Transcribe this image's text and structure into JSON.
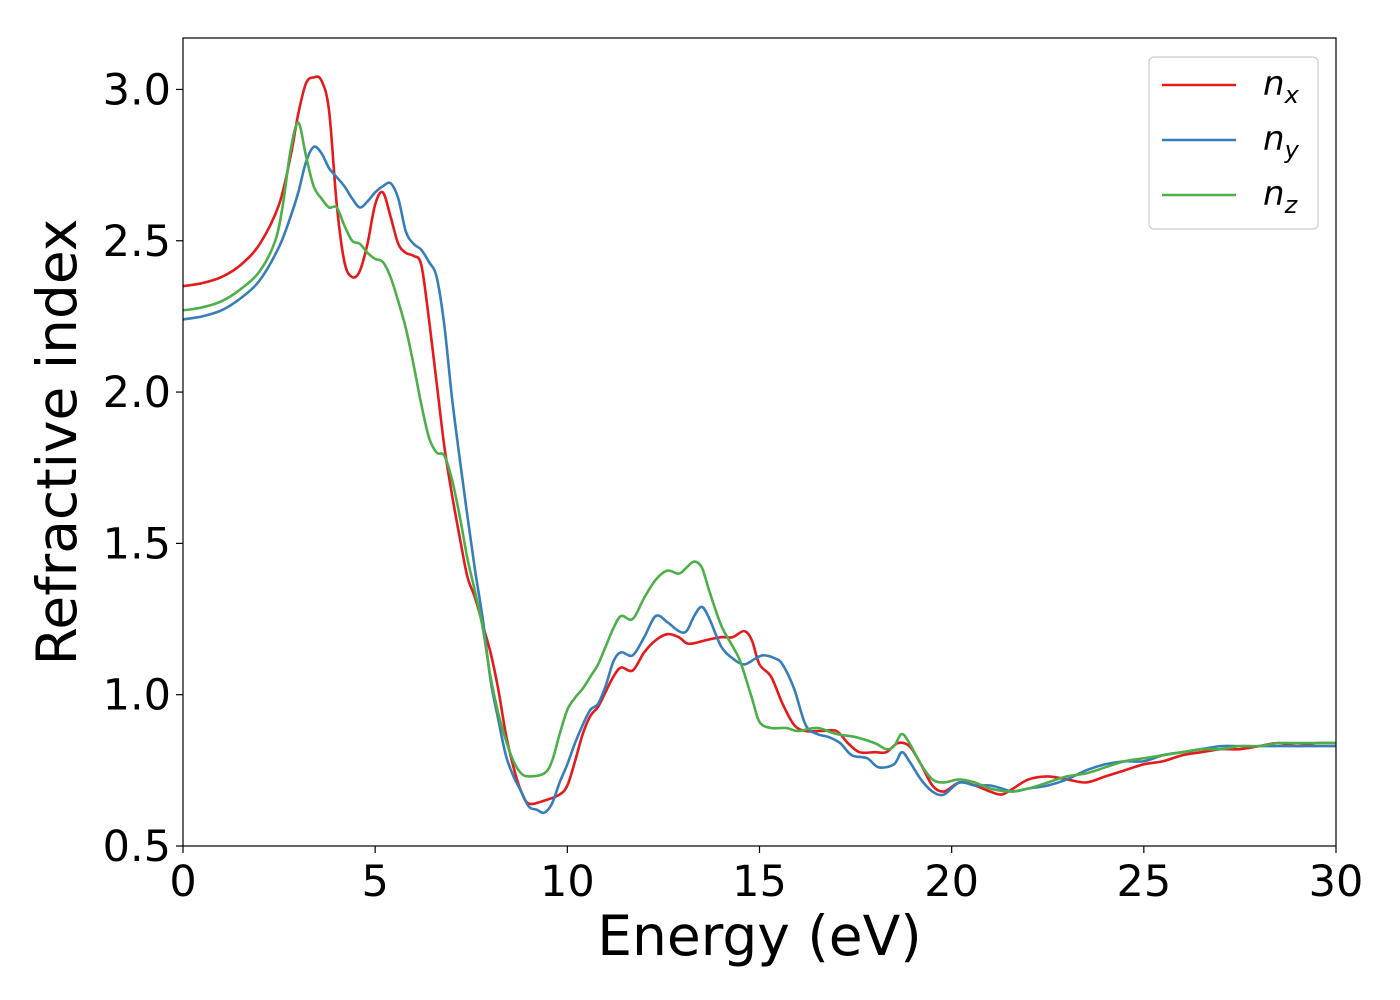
{
  "chart_data": {
    "type": "line",
    "xlabel": "Energy (eV)",
    "ylabel": "Refractive index",
    "xlim": [
      0,
      30
    ],
    "ylim": [
      0.5,
      3.17
    ],
    "xticks": [
      0,
      5,
      10,
      15,
      20,
      25,
      30
    ],
    "xtick_labels": [
      "0",
      "5",
      "10",
      "15",
      "20",
      "25",
      "30"
    ],
    "yticks": [
      0.5,
      1.0,
      1.5,
      2.0,
      2.5,
      3.0
    ],
    "ytick_labels": [
      "0.5",
      "1.0",
      "1.5",
      "2.0",
      "2.5",
      "3.0"
    ],
    "grid": false,
    "legend_position": "top-right",
    "series": [
      {
        "name": "n",
        "sub": "x",
        "color": "#e41a1c",
        "points": [
          [
            0,
            2.35
          ],
          [
            0.5,
            2.36
          ],
          [
            1,
            2.38
          ],
          [
            1.5,
            2.42
          ],
          [
            2,
            2.49
          ],
          [
            2.5,
            2.62
          ],
          [
            2.8,
            2.78
          ],
          [
            3.0,
            2.92
          ],
          [
            3.2,
            3.02
          ],
          [
            3.4,
            3.04
          ],
          [
            3.6,
            3.03
          ],
          [
            3.8,
            2.93
          ],
          [
            4.0,
            2.62
          ],
          [
            4.2,
            2.43
          ],
          [
            4.4,
            2.38
          ],
          [
            4.6,
            2.4
          ],
          [
            4.8,
            2.49
          ],
          [
            5.0,
            2.62
          ],
          [
            5.2,
            2.66
          ],
          [
            5.4,
            2.58
          ],
          [
            5.6,
            2.49
          ],
          [
            5.8,
            2.46
          ],
          [
            6.0,
            2.45
          ],
          [
            6.2,
            2.42
          ],
          [
            6.4,
            2.24
          ],
          [
            6.6,
            2.03
          ],
          [
            6.8,
            1.82
          ],
          [
            7.0,
            1.66
          ],
          [
            7.2,
            1.52
          ],
          [
            7.4,
            1.39
          ],
          [
            7.6,
            1.32
          ],
          [
            7.8,
            1.23
          ],
          [
            8.0,
            1.14
          ],
          [
            8.2,
            1.02
          ],
          [
            8.4,
            0.87
          ],
          [
            8.6,
            0.76
          ],
          [
            8.8,
            0.68
          ],
          [
            9.0,
            0.64
          ],
          [
            9.4,
            0.65
          ],
          [
            9.8,
            0.67
          ],
          [
            10.0,
            0.7
          ],
          [
            10.2,
            0.78
          ],
          [
            10.4,
            0.87
          ],
          [
            10.6,
            0.93
          ],
          [
            10.8,
            0.96
          ],
          [
            11.0,
            1.01
          ],
          [
            11.2,
            1.06
          ],
          [
            11.4,
            1.09
          ],
          [
            11.7,
            1.08
          ],
          [
            12.0,
            1.14
          ],
          [
            12.3,
            1.18
          ],
          [
            12.6,
            1.2
          ],
          [
            12.9,
            1.19
          ],
          [
            13.1,
            1.17
          ],
          [
            13.3,
            1.17
          ],
          [
            13.6,
            1.18
          ],
          [
            14.0,
            1.19
          ],
          [
            14.3,
            1.19
          ],
          [
            14.6,
            1.21
          ],
          [
            14.8,
            1.18
          ],
          [
            15.0,
            1.1
          ],
          [
            15.3,
            1.06
          ],
          [
            15.6,
            0.97
          ],
          [
            15.9,
            0.9
          ],
          [
            16.2,
            0.88
          ],
          [
            16.6,
            0.88
          ],
          [
            17.0,
            0.88
          ],
          [
            17.3,
            0.84
          ],
          [
            17.6,
            0.81
          ],
          [
            18.0,
            0.81
          ],
          [
            18.3,
            0.81
          ],
          [
            18.6,
            0.84
          ],
          [
            18.9,
            0.83
          ],
          [
            19.2,
            0.77
          ],
          [
            19.5,
            0.7
          ],
          [
            19.8,
            0.68
          ],
          [
            20.2,
            0.71
          ],
          [
            20.6,
            0.7
          ],
          [
            21.0,
            0.68
          ],
          [
            21.3,
            0.67
          ],
          [
            21.6,
            0.69
          ],
          [
            22.0,
            0.72
          ],
          [
            22.5,
            0.73
          ],
          [
            23.0,
            0.72
          ],
          [
            23.5,
            0.71
          ],
          [
            24.0,
            0.73
          ],
          [
            24.5,
            0.75
          ],
          [
            25.0,
            0.77
          ],
          [
            25.5,
            0.78
          ],
          [
            26.0,
            0.8
          ],
          [
            26.5,
            0.81
          ],
          [
            27.0,
            0.82
          ],
          [
            27.5,
            0.82
          ],
          [
            28.0,
            0.83
          ],
          [
            28.5,
            0.84
          ],
          [
            29.0,
            0.83
          ],
          [
            29.5,
            0.84
          ],
          [
            30.0,
            0.84
          ]
        ]
      },
      {
        "name": "n",
        "sub": "y",
        "color": "#377eb8",
        "points": [
          [
            0,
            2.24
          ],
          [
            0.5,
            2.25
          ],
          [
            1,
            2.27
          ],
          [
            1.5,
            2.31
          ],
          [
            2,
            2.37
          ],
          [
            2.5,
            2.48
          ],
          [
            2.8,
            2.58
          ],
          [
            3.0,
            2.66
          ],
          [
            3.2,
            2.76
          ],
          [
            3.4,
            2.81
          ],
          [
            3.6,
            2.79
          ],
          [
            3.8,
            2.74
          ],
          [
            4.0,
            2.71
          ],
          [
            4.2,
            2.68
          ],
          [
            4.4,
            2.64
          ],
          [
            4.6,
            2.61
          ],
          [
            4.8,
            2.63
          ],
          [
            5.0,
            2.66
          ],
          [
            5.2,
            2.68
          ],
          [
            5.4,
            2.69
          ],
          [
            5.6,
            2.64
          ],
          [
            5.8,
            2.53
          ],
          [
            6.0,
            2.49
          ],
          [
            6.2,
            2.47
          ],
          [
            6.4,
            2.43
          ],
          [
            6.6,
            2.38
          ],
          [
            6.8,
            2.22
          ],
          [
            7.0,
            1.98
          ],
          [
            7.2,
            1.78
          ],
          [
            7.4,
            1.59
          ],
          [
            7.6,
            1.41
          ],
          [
            7.8,
            1.25
          ],
          [
            8.0,
            1.05
          ],
          [
            8.2,
            0.92
          ],
          [
            8.4,
            0.8
          ],
          [
            8.6,
            0.73
          ],
          [
            8.8,
            0.68
          ],
          [
            9.0,
            0.63
          ],
          [
            9.2,
            0.62
          ],
          [
            9.4,
            0.61
          ],
          [
            9.6,
            0.64
          ],
          [
            9.8,
            0.71
          ],
          [
            10.0,
            0.77
          ],
          [
            10.2,
            0.84
          ],
          [
            10.4,
            0.9
          ],
          [
            10.6,
            0.95
          ],
          [
            10.8,
            0.97
          ],
          [
            11.0,
            1.03
          ],
          [
            11.2,
            1.11
          ],
          [
            11.4,
            1.14
          ],
          [
            11.7,
            1.13
          ],
          [
            12.0,
            1.19
          ],
          [
            12.3,
            1.26
          ],
          [
            12.6,
            1.24
          ],
          [
            12.9,
            1.21
          ],
          [
            13.1,
            1.21
          ],
          [
            13.3,
            1.26
          ],
          [
            13.5,
            1.29
          ],
          [
            13.7,
            1.25
          ],
          [
            14.0,
            1.16
          ],
          [
            14.3,
            1.12
          ],
          [
            14.6,
            1.1
          ],
          [
            14.9,
            1.12
          ],
          [
            15.1,
            1.13
          ],
          [
            15.4,
            1.12
          ],
          [
            15.6,
            1.1
          ],
          [
            15.9,
            1.02
          ],
          [
            16.2,
            0.9
          ],
          [
            16.5,
            0.87
          ],
          [
            16.8,
            0.86
          ],
          [
            17.1,
            0.84
          ],
          [
            17.4,
            0.8
          ],
          [
            17.8,
            0.79
          ],
          [
            18.1,
            0.76
          ],
          [
            18.5,
            0.77
          ],
          [
            18.7,
            0.81
          ],
          [
            18.9,
            0.78
          ],
          [
            19.2,
            0.72
          ],
          [
            19.5,
            0.68
          ],
          [
            19.8,
            0.67
          ],
          [
            20.2,
            0.71
          ],
          [
            20.6,
            0.7
          ],
          [
            21.0,
            0.7
          ],
          [
            21.3,
            0.69
          ],
          [
            21.6,
            0.68
          ],
          [
            22.0,
            0.69
          ],
          [
            22.5,
            0.7
          ],
          [
            23.0,
            0.72
          ],
          [
            23.5,
            0.75
          ],
          [
            24.0,
            0.77
          ],
          [
            24.5,
            0.78
          ],
          [
            25.0,
            0.78
          ],
          [
            25.5,
            0.8
          ],
          [
            26.0,
            0.81
          ],
          [
            26.5,
            0.82
          ],
          [
            27.0,
            0.83
          ],
          [
            27.5,
            0.83
          ],
          [
            28.0,
            0.83
          ],
          [
            28.5,
            0.83
          ],
          [
            29.0,
            0.83
          ],
          [
            29.5,
            0.83
          ],
          [
            30.0,
            0.83
          ]
        ]
      },
      {
        "name": "n",
        "sub": "z",
        "color": "#4daf4a",
        "points": [
          [
            0,
            2.27
          ],
          [
            0.5,
            2.28
          ],
          [
            1,
            2.3
          ],
          [
            1.5,
            2.34
          ],
          [
            2,
            2.4
          ],
          [
            2.4,
            2.5
          ],
          [
            2.6,
            2.62
          ],
          [
            2.8,
            2.8
          ],
          [
            3.0,
            2.89
          ],
          [
            3.2,
            2.78
          ],
          [
            3.4,
            2.68
          ],
          [
            3.6,
            2.64
          ],
          [
            3.8,
            2.61
          ],
          [
            4.0,
            2.61
          ],
          [
            4.2,
            2.55
          ],
          [
            4.4,
            2.5
          ],
          [
            4.6,
            2.49
          ],
          [
            4.8,
            2.46
          ],
          [
            5.0,
            2.44
          ],
          [
            5.2,
            2.43
          ],
          [
            5.4,
            2.38
          ],
          [
            5.6,
            2.3
          ],
          [
            5.8,
            2.21
          ],
          [
            6.0,
            2.09
          ],
          [
            6.2,
            1.96
          ],
          [
            6.4,
            1.85
          ],
          [
            6.6,
            1.8
          ],
          [
            6.8,
            1.79
          ],
          [
            7.0,
            1.71
          ],
          [
            7.2,
            1.59
          ],
          [
            7.4,
            1.45
          ],
          [
            7.6,
            1.34
          ],
          [
            7.8,
            1.22
          ],
          [
            8.0,
            1.06
          ],
          [
            8.2,
            0.94
          ],
          [
            8.4,
            0.85
          ],
          [
            8.6,
            0.78
          ],
          [
            8.8,
            0.74
          ],
          [
            9.0,
            0.73
          ],
          [
            9.4,
            0.74
          ],
          [
            9.6,
            0.78
          ],
          [
            9.8,
            0.87
          ],
          [
            10.0,
            0.95
          ],
          [
            10.2,
            0.99
          ],
          [
            10.4,
            1.02
          ],
          [
            10.6,
            1.06
          ],
          [
            10.8,
            1.1
          ],
          [
            11.0,
            1.16
          ],
          [
            11.2,
            1.22
          ],
          [
            11.4,
            1.26
          ],
          [
            11.7,
            1.25
          ],
          [
            12.0,
            1.32
          ],
          [
            12.3,
            1.38
          ],
          [
            12.6,
            1.41
          ],
          [
            12.9,
            1.4
          ],
          [
            13.1,
            1.42
          ],
          [
            13.3,
            1.44
          ],
          [
            13.5,
            1.42
          ],
          [
            13.7,
            1.34
          ],
          [
            14.0,
            1.23
          ],
          [
            14.3,
            1.16
          ],
          [
            14.5,
            1.11
          ],
          [
            14.8,
            0.99
          ],
          [
            15.0,
            0.91
          ],
          [
            15.3,
            0.89
          ],
          [
            15.7,
            0.89
          ],
          [
            16.0,
            0.88
          ],
          [
            16.5,
            0.89
          ],
          [
            17.0,
            0.87
          ],
          [
            17.5,
            0.86
          ],
          [
            18.0,
            0.84
          ],
          [
            18.3,
            0.82
          ],
          [
            18.5,
            0.83
          ],
          [
            18.7,
            0.87
          ],
          [
            18.9,
            0.84
          ],
          [
            19.2,
            0.77
          ],
          [
            19.5,
            0.72
          ],
          [
            19.8,
            0.71
          ],
          [
            20.2,
            0.72
          ],
          [
            20.6,
            0.71
          ],
          [
            21.0,
            0.69
          ],
          [
            21.5,
            0.68
          ],
          [
            22.0,
            0.69
          ],
          [
            22.5,
            0.71
          ],
          [
            23.0,
            0.73
          ],
          [
            23.5,
            0.74
          ],
          [
            24.0,
            0.76
          ],
          [
            24.5,
            0.78
          ],
          [
            25.0,
            0.79
          ],
          [
            25.5,
            0.8
          ],
          [
            26.0,
            0.81
          ],
          [
            26.5,
            0.82
          ],
          [
            27.0,
            0.82
          ],
          [
            27.5,
            0.83
          ],
          [
            28.0,
            0.83
          ],
          [
            28.5,
            0.84
          ],
          [
            29.0,
            0.84
          ],
          [
            29.5,
            0.84
          ],
          [
            30.0,
            0.84
          ]
        ]
      }
    ]
  }
}
